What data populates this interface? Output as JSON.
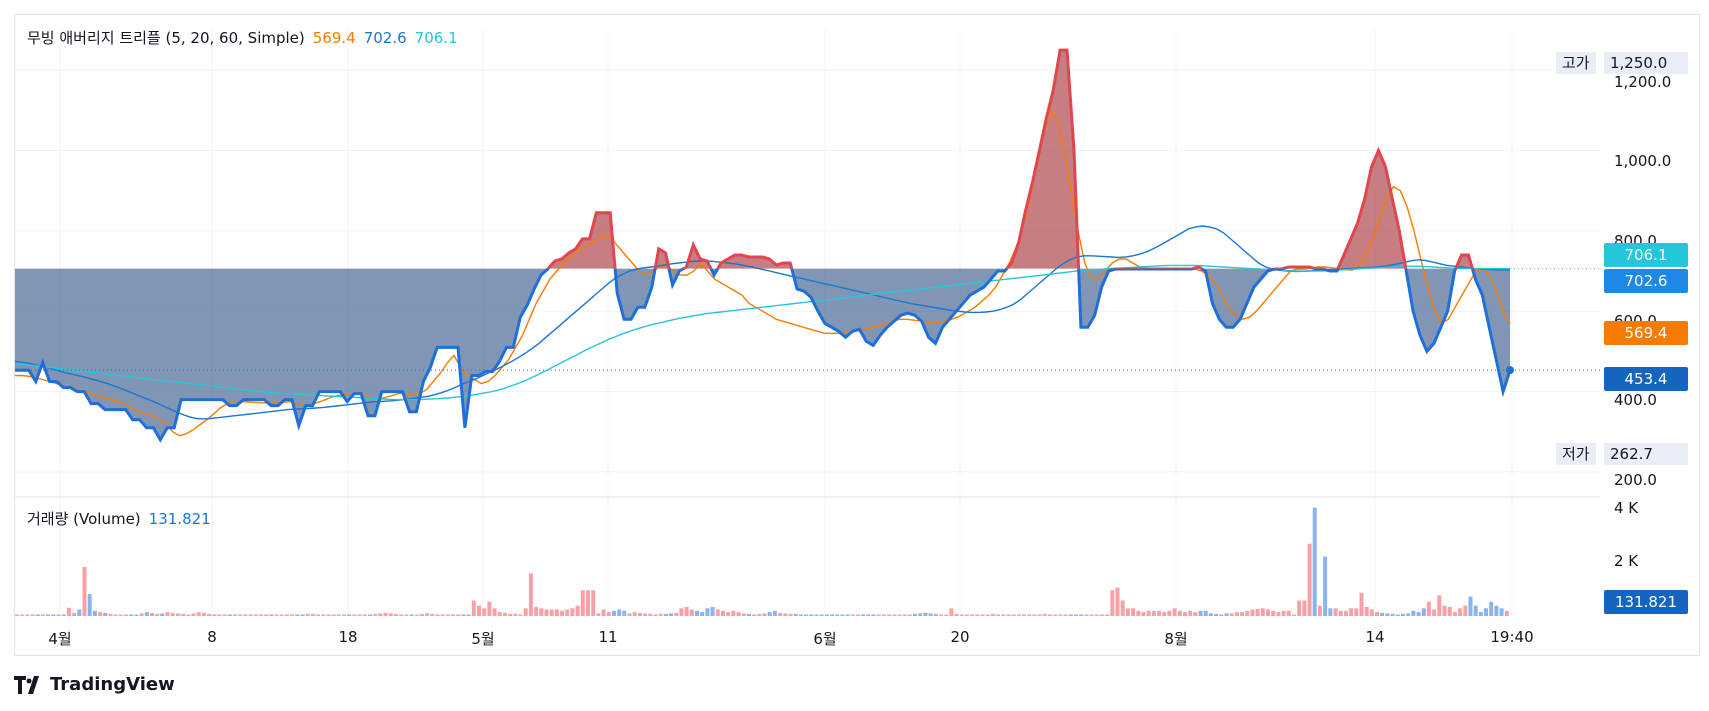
{
  "indicator": {
    "title": "무빙 애버리지 트리플 (5, 20, 60, Simple)",
    "ma5_value": "569.4",
    "ma20_value": "702.6",
    "ma60_value": "706.1"
  },
  "volume_legend": {
    "title": "거래량 (Volume)",
    "value": "131.821"
  },
  "high_tag": {
    "label": "고가",
    "value": "1,250.0"
  },
  "low_tag": {
    "label": "저가",
    "value": "262.7"
  },
  "price_labels": {
    "ma60": "706.1",
    "ma20": "702.6",
    "ma5": "569.4",
    "current": "453.4",
    "volume": "131.821"
  },
  "y_ticks": [
    "1,200.0",
    "1,000.0",
    "800.0",
    "600.0",
    "400.0",
    "200.0"
  ],
  "vol_ticks": [
    "4 K",
    "2 K"
  ],
  "x_ticks": [
    "4월",
    "8",
    "18",
    "5월",
    "11",
    "6월",
    "20",
    "8월",
    "14",
    "19:40"
  ],
  "brand": "TradingView",
  "colors": {
    "price_line": "#1e6fd9",
    "fill_below": "#4a6a94",
    "fill_above": "#a7393f",
    "ma5": "#f57c00",
    "ma20": "#1976d2",
    "ma60": "#26c6da",
    "vol_up": "#f7a1a6",
    "vol_down": "#8ab4f0"
  },
  "chart_data": {
    "type": "line",
    "ylim": [
      150,
      1300
    ],
    "baseline": 706.1,
    "current": 453.4,
    "high": 1250.0,
    "low": 262.7,
    "series": [
      {
        "values": [
          453,
          453,
          453,
          425,
          472,
          425,
          425,
          410,
          410,
          400,
          400,
          370,
          370,
          355,
          355,
          355,
          355,
          330,
          330,
          310,
          310,
          280,
          310,
          310,
          380,
          380,
          380,
          380,
          380,
          380,
          380,
          365,
          365,
          380,
          380,
          380,
          380,
          365,
          365,
          380,
          380,
          315,
          365,
          365,
          400,
          400,
          400,
          400,
          375,
          395,
          395,
          340,
          340,
          400,
          400,
          400,
          400,
          350,
          350,
          425,
          460,
          510,
          510,
          510,
          510,
          310,
          440,
          440,
          450,
          450,
          475,
          510,
          510,
          585,
          615,
          655,
          690,
          705,
          725,
          730,
          745,
          755,
          780,
          780,
          845,
          845,
          845,
          645,
          580,
          580,
          610,
          610,
          660,
          755,
          745,
          665,
          700,
          710,
          765,
          730,
          725,
          690,
          720,
          730,
          740,
          740,
          735,
          735,
          735,
          730,
          715,
          720,
          720,
          655,
          650,
          635,
          600,
          570,
          560,
          550,
          535,
          550,
          555,
          525,
          515,
          540,
          560,
          575,
          590,
          595,
          590,
          575,
          535,
          520,
          560,
          580,
          600,
          620,
          640,
          650,
          660,
          680,
          700,
          700,
          720,
          770,
          850,
          920,
          1000,
          1080,
          1150,
          1250,
          1250,
          1000,
          560,
          560,
          590,
          660,
          700,
          705,
          705,
          705,
          705,
          705,
          705,
          705,
          705,
          705,
          705,
          705,
          705,
          710,
          700,
          620,
          580,
          560,
          560,
          580,
          620,
          660,
          680,
          700,
          705,
          705,
          710,
          710,
          710,
          710,
          705,
          705,
          700,
          700,
          740,
          780,
          820,
          880,
          960,
          1000,
          960,
          880,
          800,
          700,
          600,
          540,
          500,
          520,
          560,
          600,
          700,
          740,
          740,
          680,
          640,
          560,
          480,
          400,
          453
        ]
      },
      {
        "name": "MA5",
        "values": [
          440,
          440,
          438,
          435,
          430,
          425,
          420,
          415,
          410,
          405,
          400,
          395,
          390,
          385,
          380,
          375,
          370,
          360,
          350,
          345,
          340,
          330,
          320,
          300,
          290,
          295,
          305,
          318,
          330,
          345,
          360,
          370,
          375,
          375,
          374,
          373,
          372,
          372,
          372,
          373,
          375,
          370,
          368,
          368,
          372,
          378,
          385,
          390,
          392,
          395,
          398,
          392,
          385,
          382,
          385,
          390,
          395,
          395,
          390,
          395,
          405,
          425,
          445,
          470,
          490,
          460,
          440,
          430,
          420,
          425,
          440,
          460,
          480,
          510,
          540,
          580,
          620,
          650,
          680,
          700,
          720,
          735,
          750,
          760,
          770,
          780,
          790,
          780,
          760,
          740,
          720,
          700,
          690,
          700,
          710,
          715,
          700,
          690,
          690,
          700,
          720,
          700,
          680,
          670,
          660,
          650,
          640,
          620,
          610,
          600,
          590,
          580,
          575,
          570,
          565,
          560,
          555,
          550,
          545,
          545,
          545,
          548,
          550,
          552,
          555,
          560,
          565,
          570,
          575,
          580,
          580,
          578,
          576,
          572,
          570,
          574,
          578,
          582,
          590,
          600,
          610,
          625,
          640,
          660,
          690,
          720,
          760,
          810,
          880,
          960,
          1040,
          1100,
          1080,
          1000,
          900,
          800,
          720,
          680,
          680,
          700,
          720,
          730,
          730,
          720,
          710,
          705,
          705,
          705,
          705,
          705,
          705,
          705,
          705,
          700,
          690,
          670,
          640,
          610,
          590,
          580,
          585,
          600,
          620,
          640,
          660,
          680,
          700,
          705,
          705,
          707,
          710,
          710,
          708,
          706,
          704,
          702,
          715,
          740,
          780,
          830,
          880,
          910,
          900,
          860,
          800,
          730,
          660,
          600,
          570,
          580,
          610,
          640,
          670,
          700,
          705,
          690,
          650,
          600,
          569.4
        ]
      },
      {
        "name": "MA20",
        "values": [
          475,
          473,
          470,
          466,
          462,
          458,
          453,
          448,
          444,
          440,
          436,
          431,
          426,
          421,
          415,
          409,
          402,
          395,
          388,
          381,
          374,
          366,
          358,
          350,
          343,
          337,
          333,
          332,
          333,
          335,
          337,
          339,
          341,
          343,
          345,
          347,
          349,
          351,
          353,
          355,
          356,
          357,
          358,
          359,
          360,
          362,
          364,
          366,
          368,
          370,
          372,
          374,
          375,
          376,
          377,
          379,
          381,
          383,
          385,
          388,
          392,
          397,
          403,
          410,
          418,
          425,
          432,
          440,
          448,
          456,
          465,
          474,
          484,
          495,
          507,
          520,
          535,
          550,
          565,
          580,
          595,
          610,
          625,
          640,
          655,
          670,
          683,
          692,
          700,
          705,
          708,
          710,
          712,
          715,
          718,
          720,
          722,
          724,
          725,
          725,
          724,
          722,
          720,
          718,
          715,
          712,
          708,
          704,
          700,
          696,
          692,
          688,
          684,
          680,
          676,
          672,
          668,
          664,
          660,
          656,
          652,
          648,
          644,
          640,
          636,
          632,
          628,
          624,
          620,
          617,
          614,
          611,
          608,
          605,
          602,
          600,
          598,
          597,
          597,
          598,
          600,
          604,
          610,
          618,
          630,
          645,
          660,
          675,
          690,
          705,
          718,
          728,
          735,
          738,
          738,
          737,
          736,
          735,
          734,
          735,
          738,
          742,
          748,
          756,
          765,
          775,
          785,
          795,
          805,
          810,
          812,
          810,
          805,
          795,
          780,
          765,
          750,
          735,
          720,
          710,
          705,
          702,
          700,
          699,
          699,
          700,
          701,
          702,
          703,
          704,
          705,
          706,
          707,
          708,
          709,
          710,
          712,
          715,
          718,
          722,
          726,
          728,
          726,
          722,
          718,
          714,
          712,
          710,
          708,
          706,
          705,
          704,
          703,
          703,
          702.6
        ]
      },
      {
        "name": "MA60",
        "values": [
          470,
          468,
          466,
          464,
          462,
          460,
          458,
          456,
          454,
          452,
          450,
          448,
          446,
          444,
          442,
          440,
          438,
          436,
          434,
          432,
          430,
          428,
          426,
          424,
          422,
          420,
          418,
          416,
          414,
          412,
          410,
          408,
          406,
          404,
          402,
          400,
          398,
          397,
          396,
          395,
          394,
          393,
          392,
          391,
          390,
          389,
          388,
          387,
          386,
          385,
          384,
          383,
          382,
          381,
          380,
          380,
          380,
          380,
          380,
          381,
          382,
          383,
          384,
          386,
          388,
          390,
          393,
          396,
          399,
          403,
          408,
          414,
          420,
          427,
          435,
          443,
          452,
          461,
          470,
          479,
          488,
          497,
          506,
          514,
          522,
          530,
          537,
          544,
          550,
          556,
          561,
          566,
          570,
          574,
          578,
          582,
          585,
          588,
          591,
          594,
          596,
          598,
          600,
          602,
          604,
          606,
          608,
          610,
          612,
          614,
          616,
          618,
          620,
          622,
          624,
          626,
          628,
          630,
          632,
          634,
          636,
          638,
          640,
          642,
          644,
          646,
          648,
          650,
          652,
          654,
          656,
          658,
          660,
          662,
          664,
          666,
          668,
          670,
          672,
          674,
          676,
          678,
          680,
          682,
          684,
          686,
          688,
          690,
          692,
          694,
          696,
          698,
          700,
          702,
          703,
          704,
          705,
          706,
          707,
          708,
          709,
          710,
          711,
          712,
          713,
          714,
          714,
          714,
          714,
          714,
          713,
          712,
          711,
          710,
          709,
          708,
          707,
          706,
          705,
          704,
          703,
          702,
          701,
          700,
          700,
          700,
          700,
          700,
          701,
          702,
          703,
          704,
          705,
          706,
          707,
          708,
          709,
          710,
          711,
          712,
          712,
          712,
          711,
          710,
          709,
          708,
          707,
          706,
          706,
          706,
          706,
          706,
          706,
          706,
          706.1
        ]
      }
    ],
    "volume_ylim": [
      0,
      4300
    ],
    "volume": [
      60,
      60,
      60,
      60,
      60,
      60,
      60,
      60,
      60,
      60,
      320,
      120,
      250,
      1900,
      850,
      200,
      150,
      120,
      80,
      60,
      60,
      60,
      60,
      60,
      100,
      150,
      120,
      80,
      100,
      150,
      120,
      100,
      80,
      60,
      100,
      150,
      120,
      80,
      60,
      60,
      60,
      60,
      60,
      60,
      60,
      60,
      60,
      60,
      60,
      60,
      60,
      60,
      60,
      60,
      60,
      60,
      80,
      80,
      60,
      60,
      60,
      60,
      60,
      60,
      60,
      60,
      60,
      60,
      60,
      80,
      100,
      120,
      100,
      80,
      60,
      60,
      60,
      60,
      80,
      100,
      80,
      60,
      60,
      60,
      60,
      60,
      60,
      60,
      600,
      400,
      300,
      550,
      300,
      150,
      120,
      80,
      80,
      60,
      300,
      1650,
      350,
      300,
      250,
      250,
      250,
      200,
      250,
      300,
      400,
      1000,
      1000,
      1000,
      100,
      250,
      150,
      200,
      250,
      200,
      100,
      150,
      120,
      100,
      80,
      60,
      80,
      80,
      100,
      120,
      300,
      350,
      250,
      200,
      150,
      300,
      350,
      250,
      200,
      150,
      200,
      150,
      100,
      80,
      60,
      80,
      100,
      150,
      200,
      120,
      100,
      80,
      80,
      60,
      60,
      60,
      60,
      60,
      60,
      60,
      60,
      60,
      60,
      60,
      60,
      60,
      60,
      60,
      60,
      60,
      60,
      60,
      60,
      60,
      60,
      80,
      100,
      120,
      100,
      80,
      60,
      60,
      300,
      80,
      60,
      60,
      60,
      60,
      60,
      60,
      80,
      60,
      60,
      60,
      60,
      60,
      60,
      60,
      60,
      60,
      80,
      60,
      60,
      60,
      60,
      60,
      60,
      60,
      60,
      60,
      60,
      60,
      60,
      1000,
      1100,
      600,
      300,
      300,
      200,
      150,
      200,
      200,
      200,
      150,
      200,
      300,
      200,
      150,
      200,
      150,
      200,
      200,
      100,
      80,
      60,
      100,
      100,
      150,
      150,
      200,
      250,
      280,
      300,
      260,
      200,
      150,
      200,
      200,
      60,
      600,
      600,
      2800,
      4200,
      400,
      2300,
      300,
      300,
      200,
      200,
      300,
      300,
      900,
      350,
      250,
      150,
      120,
      100,
      80,
      60,
      80,
      100,
      200,
      150,
      300,
      550,
      250,
      800,
      400,
      350,
      150,
      300,
      400,
      750,
      400,
      150,
      300,
      550,
      400,
      300,
      200
    ],
    "x_ticks": [
      "4월",
      "8",
      "18",
      "5월",
      "11",
      "6월",
      "20",
      "8월",
      "14",
      "19:40"
    ]
  }
}
